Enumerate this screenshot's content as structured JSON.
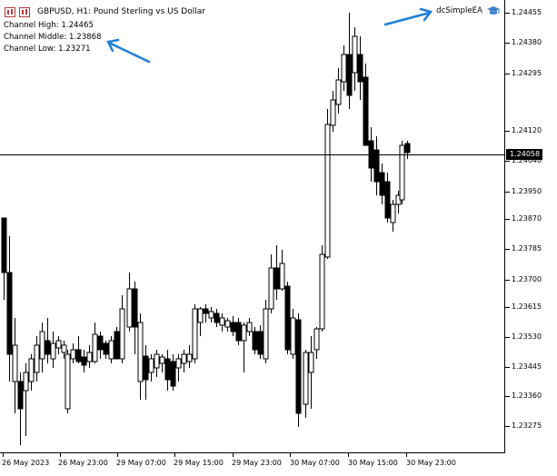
{
  "header": {
    "title": "GBPUSD, H1:  Pound Sterling vs US Dollar"
  },
  "indicator": {
    "high": "Channel High: 1.24465",
    "middle": "Channel Middle: 1.23868",
    "low": "Channel Low: 1.23271"
  },
  "ea": {
    "name": "dcSimpleEA"
  },
  "price_tag": "1.24058",
  "y_axis": [
    "1.24455",
    "1.24380",
    "1.24295",
    "1.24120",
    "1.24040",
    "1.23950",
    "1.23870",
    "1.23785",
    "1.23700",
    "1.23615",
    "1.23530",
    "1.23445",
    "1.23360",
    "1.23275"
  ],
  "x_axis": [
    "26 May 2023",
    "26 May 23:00",
    "29 May 07:00",
    "29 May 15:00",
    "29 May 23:00",
    "30 May 07:00",
    "30 May 15:00",
    "30 May 23:00"
  ],
  "colors": {
    "arrow": "#1f7fd6",
    "candle": "#000000",
    "background": "#ffffff"
  }
}
